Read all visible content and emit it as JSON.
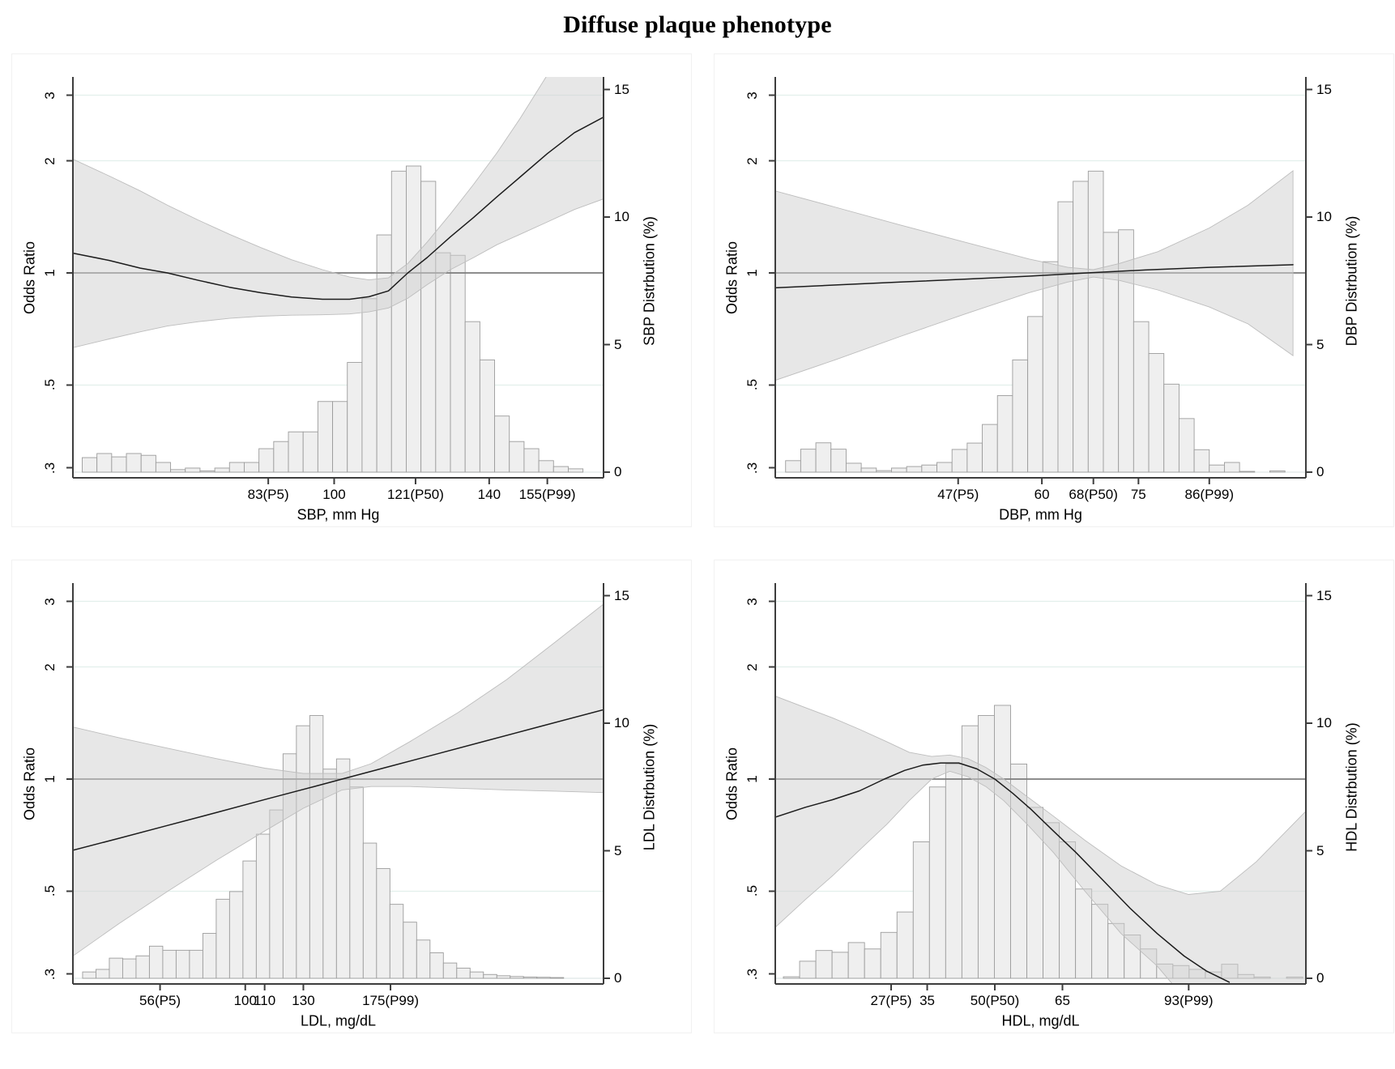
{
  "figure": {
    "title": "Diffuse plaque phenotype"
  },
  "style": {
    "bar_fill": "#efefef",
    "bar_stroke": "#9c9c9c",
    "band_fill": "#cfcfcf",
    "band_stroke": "#bdbdbd",
    "curve_color": "#1c1c1c",
    "reference_line_color": "#7d7d7d",
    "gridline_color": "#e2efec",
    "baseline_color": "#dfe8e6",
    "axis_color": "#3d3d3d"
  },
  "chart_data": [
    {
      "id": "sbp",
      "type": "line",
      "xlabel": "SBP, mm Hg",
      "ylabel_left": "Odds Ratio",
      "ylabel_right": "SBP Distrbution (%)",
      "x_scale": "linear",
      "or_scale": "log",
      "xlim": [
        32.6,
        169.5
      ],
      "or_lim": [
        0.282,
        3.36
      ],
      "dist_lim": [
        0,
        15.7
      ],
      "x_ticks": {
        "values": [
          83,
          100,
          121,
          140,
          155
        ],
        "labels": [
          "83(P5)",
          "100",
          "121(P50)",
          "140",
          "155(P99)"
        ]
      },
      "or_ticks": {
        "values": [
          3,
          2,
          1,
          0.5,
          0.3
        ],
        "labels": [
          "3",
          "2",
          "1",
          ".5",
          ".3"
        ]
      },
      "dist_ticks": {
        "values": [
          15,
          10,
          5,
          0
        ],
        "labels": [
          "15",
          "10",
          "5",
          "0"
        ]
      },
      "or_gridlines": [
        3,
        2,
        0.5
      ],
      "reference_or": 1,
      "histogram": {
        "start": 35,
        "bin_width": 3.8,
        "percent": [
          0.57,
          0.73,
          0.6,
          0.73,
          0.66,
          0.38,
          0.1,
          0.16,
          0.05,
          0.16,
          0.38,
          0.38,
          0.92,
          1.2,
          1.58,
          1.58,
          2.77,
          2.77,
          4.3,
          6.8,
          9.3,
          11.8,
          12.0,
          11.4,
          8.6,
          8.5,
          5.9,
          4.4,
          2.2,
          1.2,
          0.92,
          0.45,
          0.22,
          0.13
        ]
      },
      "or_curve": [
        [
          32.6,
          1.13
        ],
        [
          42,
          1.08
        ],
        [
          50,
          1.03
        ],
        [
          57,
          1.0
        ],
        [
          65,
          0.955
        ],
        [
          73,
          0.915
        ],
        [
          81,
          0.885
        ],
        [
          89,
          0.862
        ],
        [
          97,
          0.85
        ],
        [
          104,
          0.85
        ],
        [
          109,
          0.863
        ],
        [
          114,
          0.895
        ],
        [
          119,
          1.0
        ],
        [
          124,
          1.1
        ],
        [
          130,
          1.25
        ],
        [
          136,
          1.41
        ],
        [
          142,
          1.6
        ],
        [
          148,
          1.81
        ],
        [
          155,
          2.09
        ],
        [
          162,
          2.38
        ],
        [
          169.5,
          2.62
        ]
      ],
      "ci_band": [
        [
          32.6,
          0.63,
          2.02
        ],
        [
          42,
          0.665,
          1.82
        ],
        [
          50,
          0.695,
          1.66
        ],
        [
          57,
          0.72,
          1.52
        ],
        [
          65,
          0.74,
          1.385
        ],
        [
          73,
          0.755,
          1.27
        ],
        [
          81,
          0.765,
          1.17
        ],
        [
          89,
          0.77,
          1.085
        ],
        [
          97,
          0.772,
          1.02
        ],
        [
          104,
          0.776,
          0.975
        ],
        [
          109,
          0.786,
          0.958
        ],
        [
          114,
          0.805,
          0.97
        ],
        [
          119,
          0.855,
          1.06
        ],
        [
          124,
          0.93,
          1.21
        ],
        [
          130,
          1.02,
          1.44
        ],
        [
          136,
          1.1,
          1.73
        ],
        [
          142,
          1.19,
          2.1
        ],
        [
          148,
          1.27,
          2.6
        ],
        [
          155,
          1.37,
          3.4
        ],
        [
          162,
          1.48,
          4.2
        ],
        [
          169.5,
          1.58,
          5.0
        ]
      ]
    },
    {
      "id": "dbp",
      "type": "line",
      "xlabel": "DBP, mm Hg",
      "ylabel_left": "Odds Ratio",
      "ylabel_right": "DBP Distrbution (%)",
      "x_scale": "linear",
      "or_scale": "log",
      "xlim": [
        18.6,
        101
      ],
      "or_lim": [
        0.282,
        3.36
      ],
      "dist_lim": [
        0,
        15.7
      ],
      "x_ticks": {
        "values": [
          47,
          60,
          68,
          75,
          86
        ],
        "labels": [
          "47(P5)",
          "60",
          "68(P50)",
          "75",
          "86(P99)"
        ]
      },
      "or_ticks": {
        "values": [
          3,
          2,
          1,
          0.5,
          0.3
        ],
        "labels": [
          "3",
          "2",
          "1",
          ".5",
          ".3"
        ]
      },
      "dist_ticks": {
        "values": [
          15,
          10,
          5,
          0
        ],
        "labels": [
          "15",
          "10",
          "5",
          "0"
        ]
      },
      "or_gridlines": [
        3,
        2,
        0.5
      ],
      "reference_or": 1,
      "histogram": {
        "start": 20.2,
        "bin_width": 2.35,
        "percent": [
          0.45,
          0.9,
          1.15,
          0.9,
          0.35,
          0.16,
          0.06,
          0.16,
          0.22,
          0.28,
          0.38,
          0.89,
          1.14,
          1.87,
          3.0,
          4.4,
          6.1,
          8.25,
          10.6,
          11.4,
          11.8,
          9.4,
          9.5,
          5.9,
          4.65,
          3.45,
          2.1,
          0.88,
          0.28,
          0.38,
          0.03,
          0,
          0.05
        ]
      },
      "or_curve": [
        [
          18.6,
          0.912
        ],
        [
          28,
          0.928
        ],
        [
          38,
          0.945
        ],
        [
          48,
          0.962
        ],
        [
          58,
          0.98
        ],
        [
          67,
          1.0
        ],
        [
          76,
          1.018
        ],
        [
          86,
          1.035
        ],
        [
          99,
          1.052
        ]
      ],
      "ci_band": [
        [
          18.6,
          0.515,
          1.66
        ],
        [
          28,
          0.585,
          1.5
        ],
        [
          38,
          0.675,
          1.345
        ],
        [
          48,
          0.775,
          1.21
        ],
        [
          58,
          0.885,
          1.09
        ],
        [
          64,
          0.945,
          1.035
        ],
        [
          68,
          0.975,
          1.02
        ],
        [
          72,
          0.955,
          1.06
        ],
        [
          78,
          0.9,
          1.14
        ],
        [
          86,
          0.81,
          1.32
        ],
        [
          92,
          0.73,
          1.52
        ],
        [
          99,
          0.6,
          1.88
        ]
      ]
    },
    {
      "id": "ldl",
      "type": "line",
      "xlabel": "LDL, mg/dL",
      "ylabel_left": "Odds Ratio",
      "ylabel_right": "LDL Distrbution (%)",
      "x_scale": "linear",
      "or_scale": "log",
      "xlim": [
        11,
        285
      ],
      "or_lim": [
        0.282,
        3.36
      ],
      "dist_lim": [
        0,
        15.7
      ],
      "x_ticks": {
        "values": [
          56,
          100,
          110,
          130,
          175
        ],
        "labels": [
          "56(P5)",
          "100",
          "110",
          "130",
          "175(P99)"
        ]
      },
      "or_ticks": {
        "values": [
          3,
          2,
          1,
          0.5,
          0.3
        ],
        "labels": [
          "3",
          "2",
          "1",
          ".5",
          ".3"
        ]
      },
      "dist_ticks": {
        "values": [
          15,
          10,
          5,
          0
        ],
        "labels": [
          "15",
          "10",
          "5",
          "0"
        ]
      },
      "or_gridlines": [
        3,
        2,
        0.5
      ],
      "reference_or": 1,
      "histogram": {
        "start": 16,
        "bin_width": 6.9,
        "percent": [
          0.25,
          0.35,
          0.79,
          0.76,
          0.88,
          1.26,
          1.1,
          1.1,
          1.1,
          1.76,
          3.1,
          3.4,
          4.6,
          5.65,
          6.6,
          8.8,
          9.9,
          10.3,
          8.2,
          8.6,
          7.5,
          5.3,
          4.3,
          2.9,
          2.2,
          1.5,
          1.0,
          0.6,
          0.4,
          0.25,
          0.15,
          0.1,
          0.07,
          0.05,
          0.04,
          0.03
        ]
      },
      "or_curve": [
        [
          11,
          0.644
        ],
        [
          35,
          0.694
        ],
        [
          60,
          0.751
        ],
        [
          85,
          0.813
        ],
        [
          110,
          0.881
        ],
        [
          135,
          0.953
        ],
        [
          150,
          1.0
        ],
        [
          175,
          1.083
        ],
        [
          200,
          1.172
        ],
        [
          225,
          1.269
        ],
        [
          250,
          1.374
        ],
        [
          285,
          1.536
        ]
      ],
      "ci_band": [
        [
          11,
          0.335,
          1.38
        ],
        [
          35,
          0.41,
          1.29
        ],
        [
          60,
          0.5,
          1.21
        ],
        [
          85,
          0.605,
          1.135
        ],
        [
          110,
          0.725,
          1.07
        ],
        [
          130,
          0.835,
          1.035
        ],
        [
          150,
          0.935,
          1.035
        ],
        [
          165,
          0.955,
          1.1
        ],
        [
          185,
          0.955,
          1.26
        ],
        [
          210,
          0.945,
          1.51
        ],
        [
          235,
          0.935,
          1.85
        ],
        [
          260,
          0.928,
          2.33
        ],
        [
          285,
          0.92,
          2.95
        ]
      ]
    },
    {
      "id": "hdl",
      "type": "line",
      "xlabel": "HDL, mg/dL",
      "ylabel_left": "Odds Ratio",
      "ylabel_right": "HDL Distrbution (%)",
      "x_scale": "linear",
      "or_scale": "log",
      "xlim": [
        1.3,
        119
      ],
      "or_lim": [
        0.282,
        3.36
      ],
      "dist_lim": [
        0,
        15.7
      ],
      "x_ticks": {
        "values": [
          27,
          35,
          50,
          65,
          93
        ],
        "labels": [
          "27(P5)",
          "35",
          "50(P50)",
          "65",
          "93(P99)"
        ]
      },
      "or_ticks": {
        "values": [
          3,
          2,
          1,
          0.5,
          0.3
        ],
        "labels": [
          "3",
          "2",
          "1",
          ".5",
          ".3"
        ]
      },
      "dist_ticks": {
        "values": [
          15,
          10,
          5,
          0
        ],
        "labels": [
          "15",
          "10",
          "5",
          "0"
        ]
      },
      "or_gridlines": [
        3,
        2,
        0.5
      ],
      "reference_or": 1,
      "histogram": {
        "start": 3.1,
        "bin_width": 3.6,
        "percent": [
          0.06,
          0.67,
          1.09,
          1.02,
          1.4,
          1.15,
          1.8,
          2.6,
          5.35,
          7.5,
          8.4,
          9.9,
          10.3,
          10.7,
          8.4,
          6.7,
          6.1,
          5.35,
          3.5,
          2.9,
          2.15,
          1.7,
          1.15,
          0.56,
          0.5,
          0.35,
          0.25,
          0.55,
          0.15,
          0.05,
          0,
          0.05
        ]
      },
      "or_curve": [
        [
          1.3,
          0.79
        ],
        [
          8,
          0.84
        ],
        [
          14,
          0.88
        ],
        [
          20,
          0.93
        ],
        [
          25.5,
          1.0
        ],
        [
          30,
          1.055
        ],
        [
          34,
          1.09
        ],
        [
          38,
          1.105
        ],
        [
          42,
          1.105
        ],
        [
          46,
          1.065
        ],
        [
          50,
          1.0
        ],
        [
          54,
          0.915
        ],
        [
          58,
          0.83
        ],
        [
          63,
          0.725
        ],
        [
          68,
          0.635
        ],
        [
          74,
          0.535
        ],
        [
          80,
          0.45
        ],
        [
          86,
          0.385
        ],
        [
          92,
          0.335
        ],
        [
          97,
          0.305
        ],
        [
          102,
          0.285
        ]
      ],
      "ci_band": [
        [
          1.3,
          0.4,
          1.67
        ],
        [
          8,
          0.475,
          1.555
        ],
        [
          14,
          0.55,
          1.46
        ],
        [
          20,
          0.645,
          1.36
        ],
        [
          26,
          0.755,
          1.26
        ],
        [
          31,
          0.875,
          1.18
        ],
        [
          36,
          1.0,
          1.15
        ],
        [
          40,
          1.05,
          1.16
        ],
        [
          44,
          1.015,
          1.135
        ],
        [
          48,
          0.955,
          1.075
        ],
        [
          52,
          0.875,
          1.0
        ],
        [
          57,
          0.76,
          0.9
        ],
        [
          63,
          0.635,
          0.795
        ],
        [
          70,
          0.5,
          0.685
        ],
        [
          78,
          0.385,
          0.585
        ],
        [
          86,
          0.315,
          0.52
        ],
        [
          93,
          0.25,
          0.49
        ],
        [
          100,
          0.25,
          0.5
        ],
        [
          108,
          0.25,
          0.6
        ],
        [
          119,
          0.25,
          0.82
        ]
      ]
    }
  ]
}
